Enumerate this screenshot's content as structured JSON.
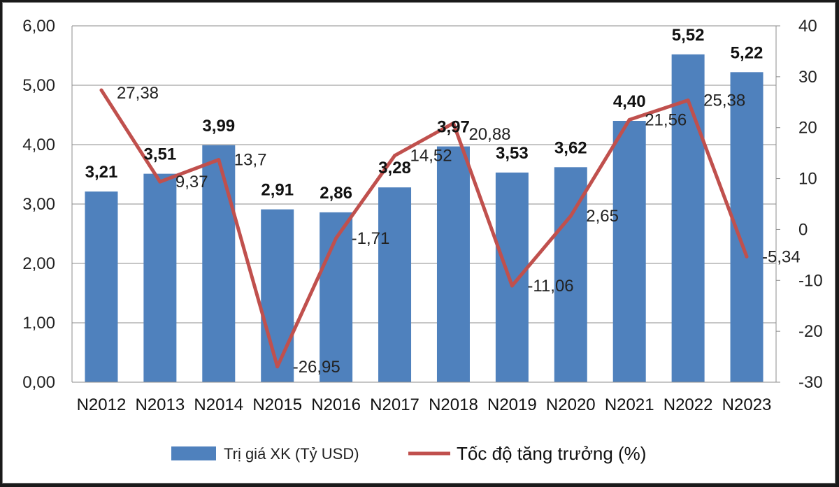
{
  "chart_data": {
    "type": "bar+line",
    "categories": [
      "N2012",
      "N2013",
      "N2014",
      "N2015",
      "N2016",
      "N2017",
      "N2018",
      "N2019",
      "N2020",
      "N2021",
      "N2022",
      "N2023"
    ],
    "series": [
      {
        "name": "Trị giá XK (Tỷ USD)",
        "type": "bar",
        "axis": "left",
        "color": "#4f81bd",
        "values": [
          3.21,
          3.51,
          3.99,
          2.91,
          2.86,
          3.28,
          3.97,
          3.53,
          3.62,
          4.4,
          5.52,
          5.22
        ],
        "labels": [
          "3,21",
          "3,51",
          "3,99",
          "2,91",
          "2,86",
          "3,28",
          "3,97",
          "3,53",
          "3,62",
          "4,40",
          "5,52",
          "5,22"
        ]
      },
      {
        "name": "Tốc độ tăng trưởng (%)",
        "type": "line",
        "axis": "right",
        "color": "#c0504d",
        "values": [
          27.38,
          9.37,
          13.7,
          -26.95,
          -1.71,
          14.52,
          20.88,
          -11.06,
          2.65,
          21.56,
          25.38,
          -5.34
        ],
        "labels": [
          "27,38",
          "9,37",
          "13,7",
          "-26,95",
          "-1,71",
          "14,52",
          "20,88",
          "-11,06",
          "2,65",
          "21,56",
          "25,38",
          "-5,34"
        ]
      }
    ],
    "y_left": {
      "ylim": [
        0,
        6
      ],
      "ticks": [
        "0,00",
        "1,00",
        "2,00",
        "3,00",
        "4,00",
        "5,00",
        "6,00"
      ]
    },
    "y_right": {
      "ylim": [
        -30,
        40
      ],
      "ticks": [
        "-30",
        "-20",
        "-10",
        "0",
        "10",
        "20",
        "30",
        "40"
      ]
    },
    "grid": true,
    "legend": "bottom"
  }
}
